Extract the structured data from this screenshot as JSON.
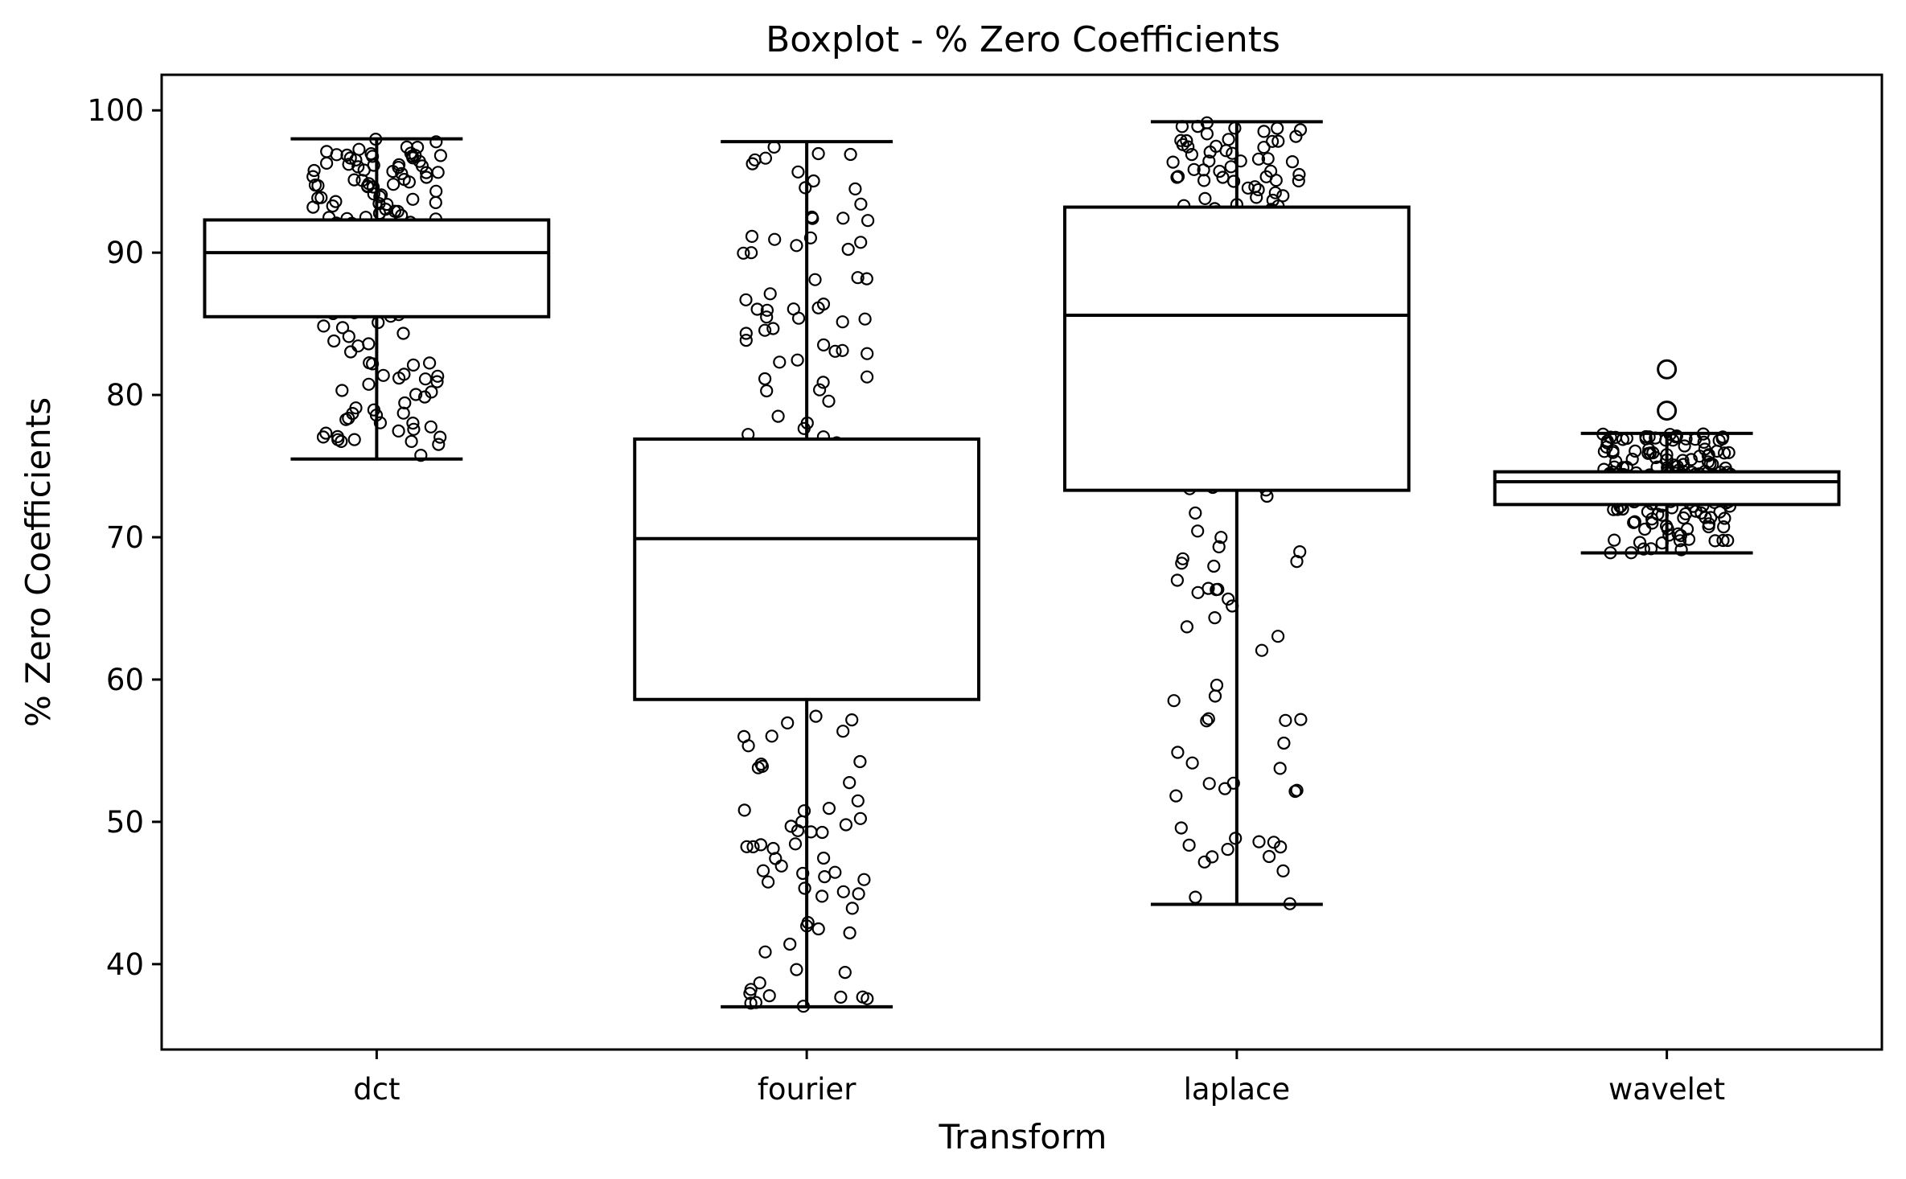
{
  "chart_data": {
    "type": "box",
    "title": "Boxplot - % Zero Coefficients",
    "xlabel": "Transform",
    "ylabel": "% Zero Coefficients",
    "ylim": [
      34,
      102.5
    ],
    "yticks": [
      40,
      50,
      60,
      70,
      80,
      90,
      100
    ],
    "grid": false,
    "categories": [
      "dct",
      "fourier",
      "laplace",
      "wavelet"
    ],
    "boxes": [
      {
        "name": "dct",
        "whisker_low": 75.5,
        "q1": 85.5,
        "median": 90.0,
        "q3": 92.3,
        "whisker_high": 98.0
      },
      {
        "name": "fourier",
        "whisker_low": 37.0,
        "q1": 58.6,
        "median": 69.9,
        "q3": 76.9,
        "whisker_high": 97.8
      },
      {
        "name": "laplace",
        "whisker_low": 44.2,
        "q1": 73.3,
        "median": 85.6,
        "q3": 93.2,
        "whisker_high": 99.2
      },
      {
        "name": "wavelet",
        "whisker_low": 68.9,
        "q1": 72.3,
        "median": 73.9,
        "q3": 74.6,
        "whisker_high": 77.3
      }
    ],
    "outliers": [
      {
        "name": "wavelet",
        "values": [
          78.9,
          81.8
        ]
      }
    ]
  }
}
